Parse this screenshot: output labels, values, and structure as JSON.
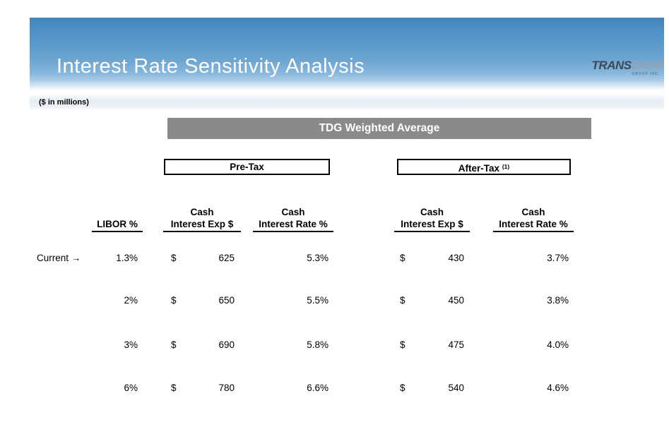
{
  "page": {
    "title": "Interest Rate Sensitivity Analysis",
    "units_note": "($ in millions)"
  },
  "logo": {
    "name_bold": "TRANS",
    "name_light": "DIGM",
    "subtext": "GROUP INC."
  },
  "table": {
    "group_header": "TDG Weighted Average",
    "pretax_label": "Pre-Tax",
    "aftertax_label": "After-Tax ",
    "aftertax_footnote": "(1)",
    "col_headers": {
      "libor": "LIBOR %",
      "cash": "Cash",
      "interest_exp": "Interest Exp $",
      "interest_rate": "Interest Rate %"
    },
    "current_label": "Current →",
    "rows": [
      {
        "libor": "1.3%",
        "pre_dollar": "$",
        "pre_exp": "625",
        "pre_rate": "5.3%",
        "post_dollar": "$",
        "post_exp": "430",
        "post_rate": "3.7%"
      },
      {
        "libor": "2%",
        "pre_dollar": "$",
        "pre_exp": "650",
        "pre_rate": "5.5%",
        "post_dollar": "$",
        "post_exp": "450",
        "post_rate": "3.8%"
      },
      {
        "libor": "3%",
        "pre_dollar": "$",
        "pre_exp": "690",
        "pre_rate": "5.8%",
        "post_dollar": "$",
        "post_exp": "475",
        "post_rate": "4.0%"
      },
      {
        "libor": "6%",
        "pre_dollar": "$",
        "pre_exp": "780",
        "pre_rate": "6.6%",
        "post_dollar": "$",
        "post_exp": "540",
        "post_rate": "4.6%"
      }
    ]
  },
  "colors": {
    "banner_sky_top": "#4083bb",
    "banner_sky_mid": "#6fa7d2",
    "banner_cloud_band": "#ffffff",
    "banner_haze_bottom": "#e6edf4",
    "group_bar_gray": "#8a8a8a",
    "title_white": "#ffffff",
    "text_black": "#000000"
  },
  "chart_data": {
    "type": "table",
    "title": "TDG Weighted Average",
    "sections": [
      "Pre-Tax",
      "After-Tax (1)"
    ],
    "columns": [
      "LIBOR %",
      "Pre-Tax Cash Interest Exp $",
      "Pre-Tax Cash Interest Rate %",
      "After-Tax Cash Interest Exp $",
      "After-Tax Cash Interest Rate %"
    ],
    "rows": [
      [
        "1.3% (Current)",
        625,
        "5.3%",
        430,
        "3.7%"
      ],
      [
        "2%",
        650,
        "5.5%",
        450,
        "3.8%"
      ],
      [
        "3%",
        690,
        "5.8%",
        475,
        "4.0%"
      ],
      [
        "6%",
        780,
        "6.6%",
        540,
        "4.6%"
      ]
    ]
  }
}
